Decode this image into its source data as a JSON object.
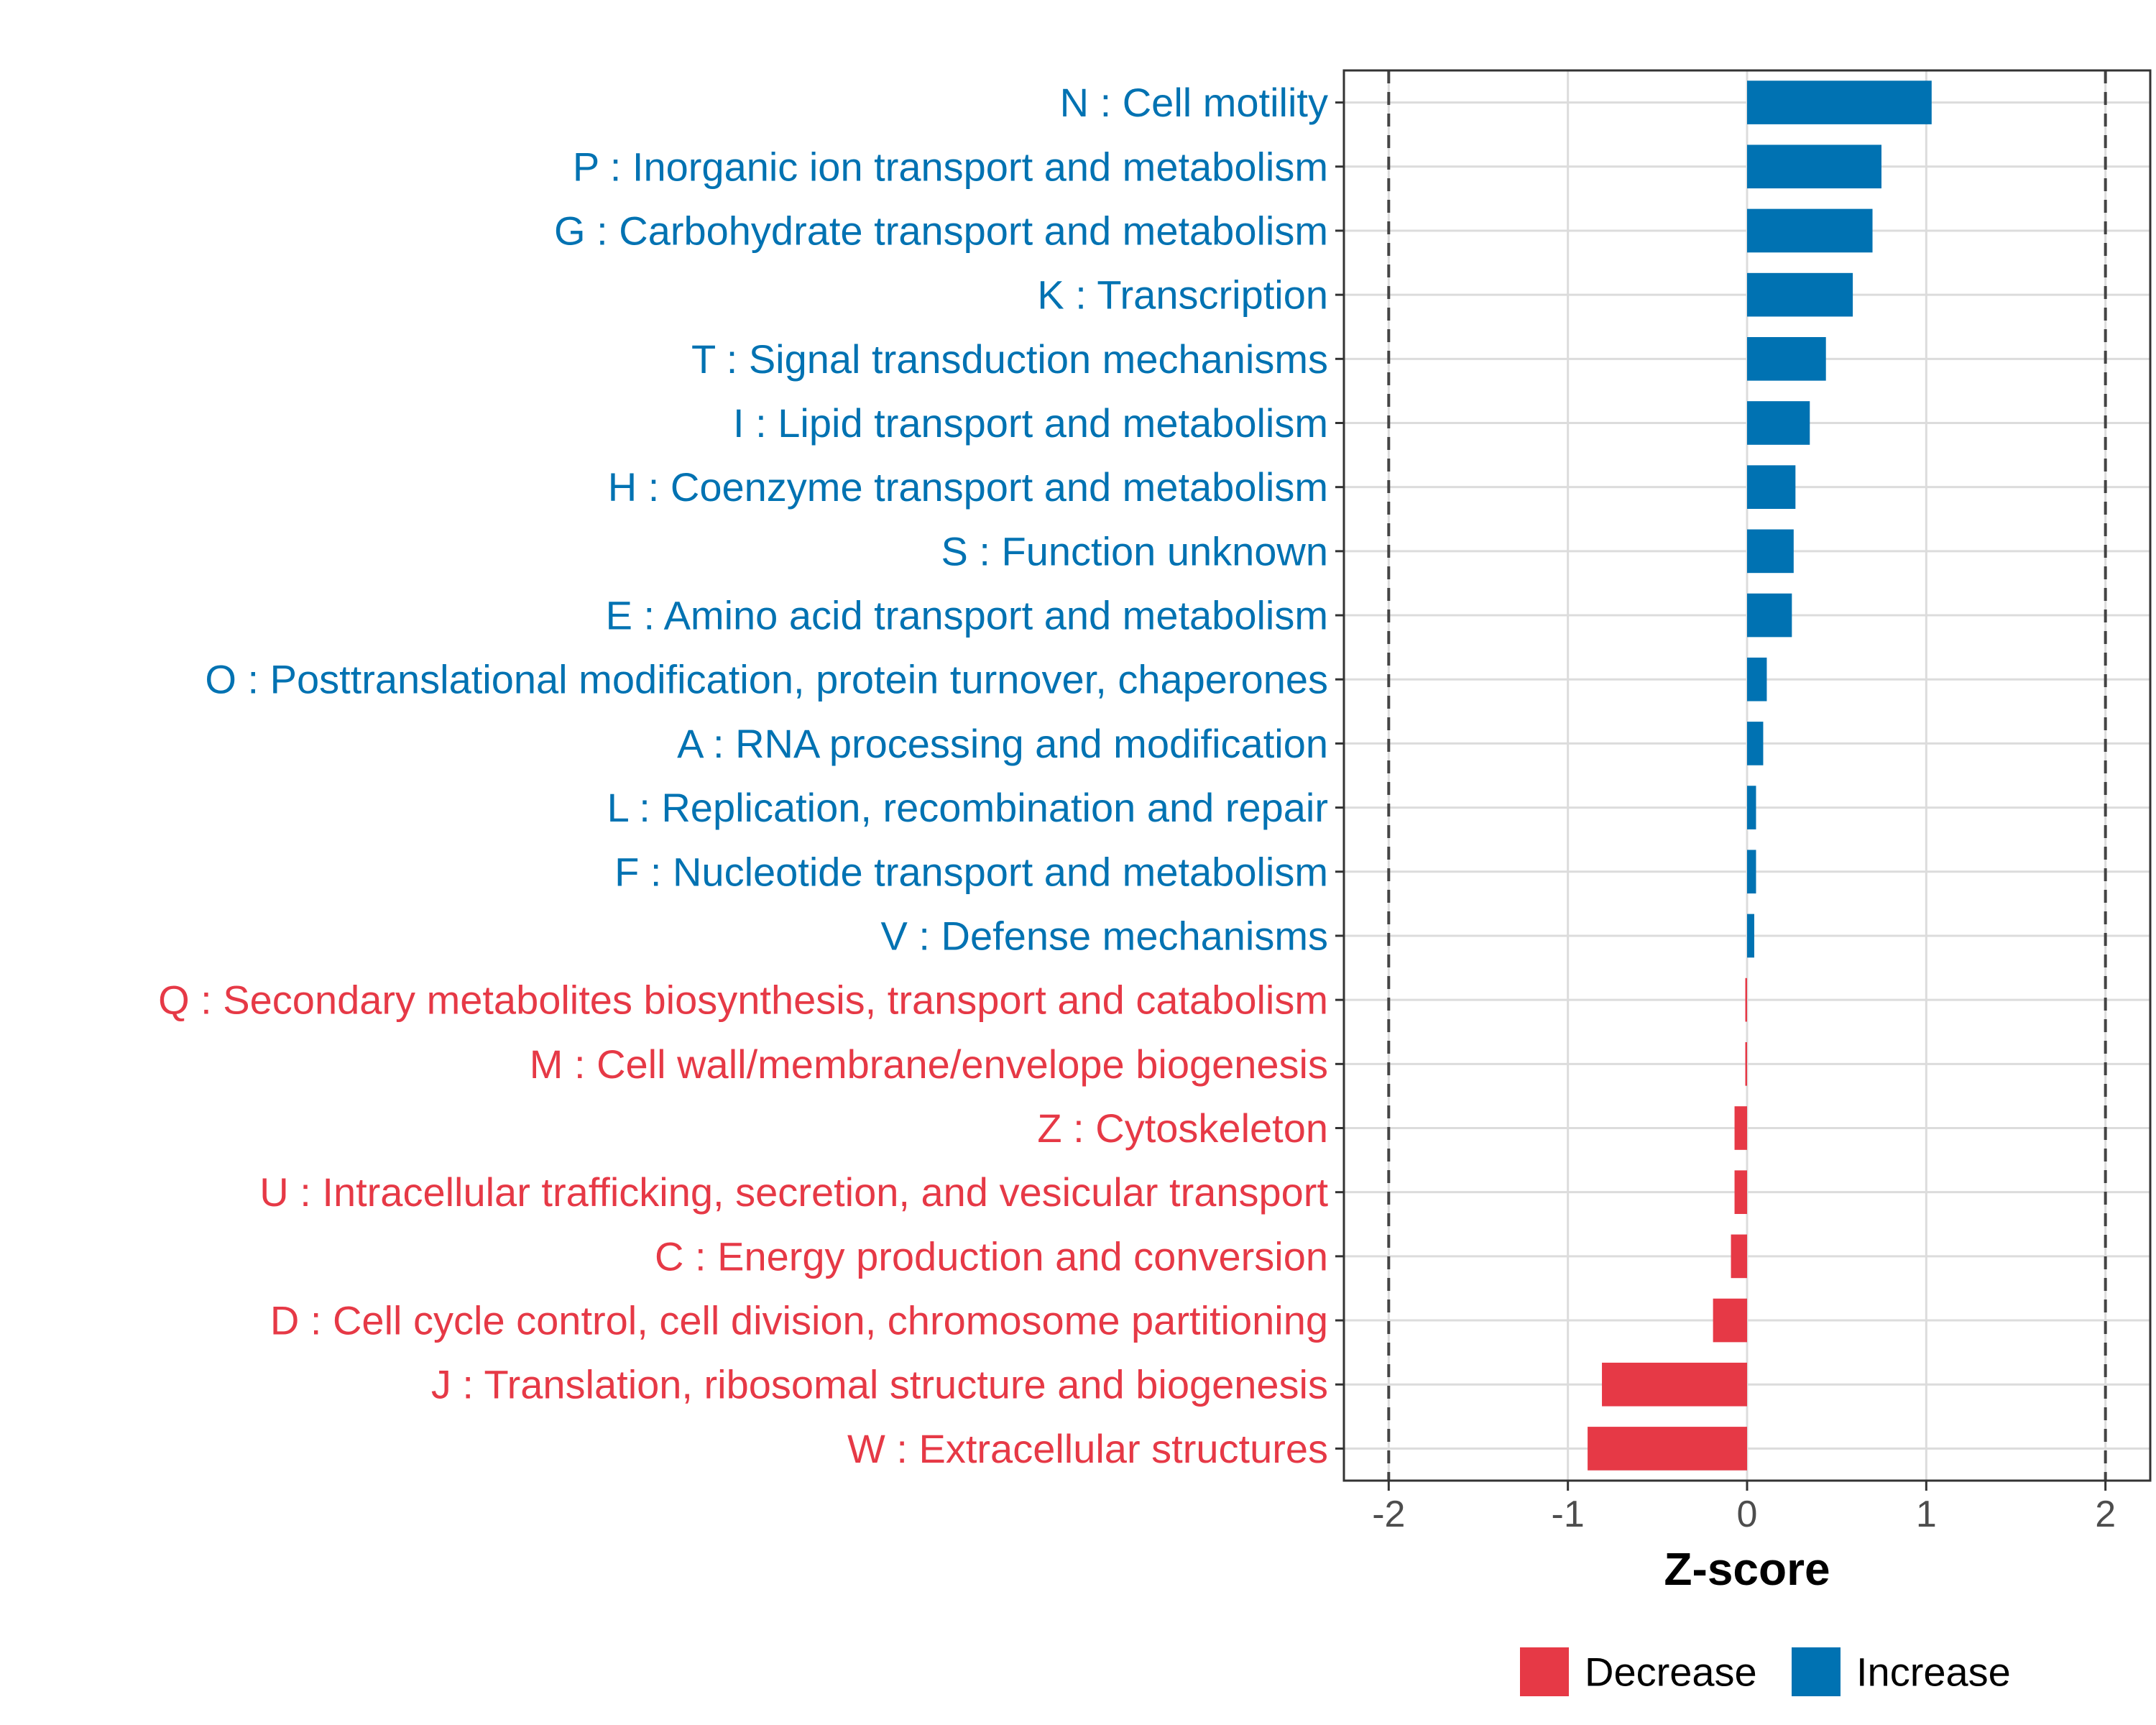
{
  "chart_data": {
    "type": "bar",
    "orientation": "horizontal",
    "title": "",
    "xlabel": "Z-score",
    "ylabel": "",
    "xlim": [
      -2.25,
      2.25
    ],
    "x_ticks": [
      -2,
      -1,
      0,
      1,
      2
    ],
    "x_tick_labels": [
      "-2",
      "-1",
      "0",
      "1",
      "2"
    ],
    "reference_lines": [
      -2,
      2
    ],
    "grid": true,
    "colors": {
      "Increase": "#0072b2",
      "Decrease": "#e63946"
    },
    "legend": {
      "position": "bottom",
      "entries": [
        {
          "label": "Decrease",
          "color": "#e63946"
        },
        {
          "label": "Increase",
          "color": "#0072b2"
        }
      ]
    },
    "categories": [
      "N : Cell motility",
      "P : Inorganic ion transport and metabolism",
      "G : Carbohydrate transport and metabolism",
      "K : Transcription",
      "T : Signal transduction mechanisms",
      "I : Lipid transport and metabolism",
      "H : Coenzyme transport and metabolism",
      "S : Function unknown",
      "E : Amino acid transport and metabolism",
      "O : Posttranslational modification, protein turnover, chaperones",
      "A : RNA processing and modification",
      "L : Replication, recombination and repair",
      "F : Nucleotide transport and metabolism",
      "V : Defense mechanisms",
      "Q : Secondary metabolites biosynthesis, transport and catabolism",
      "M : Cell wall/membrane/envelope biogenesis",
      "Z : Cytoskeleton",
      "U : Intracellular trafficking, secretion, and vesicular transport",
      "C : Energy production and conversion",
      "D : Cell cycle control, cell division, chromosome partitioning",
      "J : Translation, ribosomal structure and biogenesis",
      "W : Extracellular structures"
    ],
    "values": [
      1.03,
      0.75,
      0.7,
      0.59,
      0.44,
      0.35,
      0.27,
      0.26,
      0.25,
      0.11,
      0.09,
      0.05,
      0.05,
      0.04,
      -0.01,
      -0.01,
      -0.07,
      -0.07,
      -0.09,
      -0.19,
      -0.81,
      -0.89
    ],
    "groups": [
      "Increase",
      "Increase",
      "Increase",
      "Increase",
      "Increase",
      "Increase",
      "Increase",
      "Increase",
      "Increase",
      "Increase",
      "Increase",
      "Increase",
      "Increase",
      "Increase",
      "Decrease",
      "Decrease",
      "Decrease",
      "Decrease",
      "Decrease",
      "Decrease",
      "Decrease",
      "Decrease"
    ]
  }
}
